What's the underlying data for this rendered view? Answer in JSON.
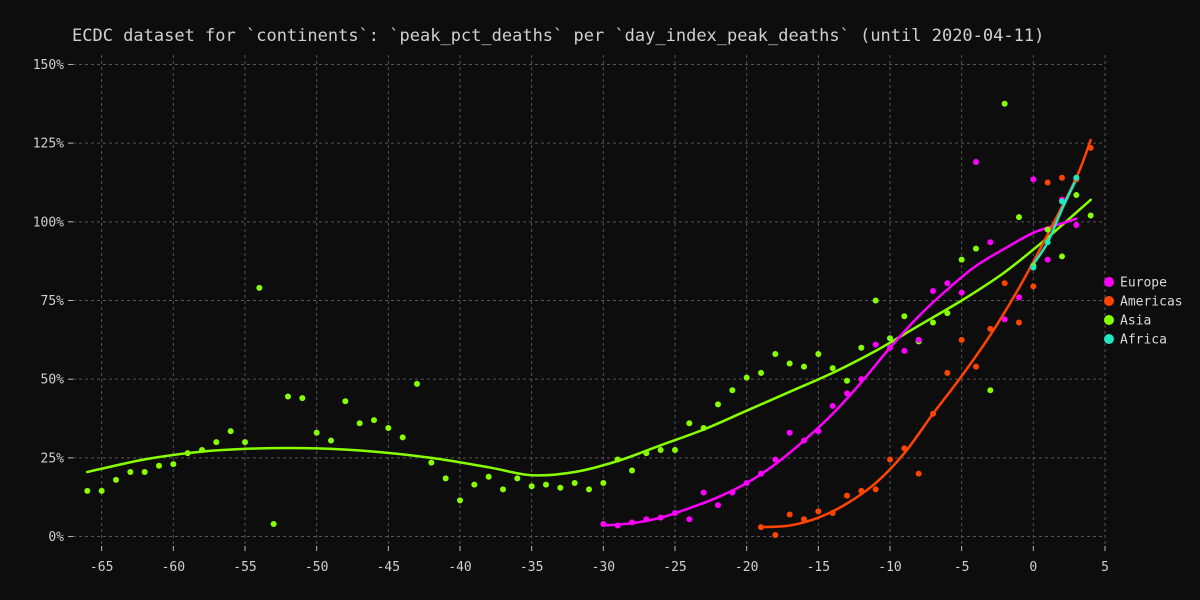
{
  "chart_data": {
    "type": "scatter",
    "title": "ECDC dataset for `continents`: `peak_pct_deaths` per `day_index_peak_deaths` (until 2020-04-11)",
    "xlabel": "",
    "ylabel": "",
    "xlim": [
      -67,
      5
    ],
    "ylim": [
      -3,
      153
    ],
    "x_ticks": [
      -65,
      -60,
      -55,
      -50,
      -45,
      -40,
      -35,
      -30,
      -25,
      -20,
      -15,
      -10,
      -5,
      0,
      5
    ],
    "x_tick_labels": [
      "-65",
      "-60",
      "-55",
      "-50",
      "-45",
      "-40",
      "-35",
      "-30",
      "-25",
      "-20",
      "-15",
      "-10",
      "-5",
      "0",
      "5"
    ],
    "y_ticks": [
      0,
      25,
      50,
      75,
      100,
      125,
      150
    ],
    "y_tick_labels": [
      "0%",
      "25%",
      "50%",
      "75%",
      "100%",
      "125%",
      "150%"
    ],
    "grid": true,
    "legend_position": "right",
    "series": [
      {
        "name": "Europe",
        "color": "#ff00ff",
        "points": [
          [
            -30,
            4
          ],
          [
            -29,
            3.5
          ],
          [
            -28,
            4.5
          ],
          [
            -27,
            5.5
          ],
          [
            -26,
            6
          ],
          [
            -25,
            7.5
          ],
          [
            -24,
            5.5
          ],
          [
            -23,
            14
          ],
          [
            -22,
            10
          ],
          [
            -21,
            14
          ],
          [
            -20,
            17
          ],
          [
            -19,
            20
          ],
          [
            -18,
            24.5
          ],
          [
            -17,
            33
          ],
          [
            -16,
            30.5
          ],
          [
            -15,
            33.5
          ],
          [
            -14,
            41.5
          ],
          [
            -13,
            45.5
          ],
          [
            -12,
            50
          ],
          [
            -11,
            61
          ],
          [
            -10,
            60
          ],
          [
            -9,
            59
          ],
          [
            -8,
            62.5
          ],
          [
            -7,
            78
          ],
          [
            -6,
            80.5
          ],
          [
            -5,
            77.5
          ],
          [
            -4,
            119
          ],
          [
            -3,
            93.5
          ],
          [
            -2,
            69
          ],
          [
            -1,
            76
          ],
          [
            0,
            113.5
          ],
          [
            1,
            88
          ],
          [
            2,
            107
          ],
          [
            3,
            99
          ]
        ],
        "trend": [
          [
            -30,
            3.5
          ],
          [
            -28,
            4.2
          ],
          [
            -26,
            6
          ],
          [
            -24,
            9
          ],
          [
            -22,
            12.5
          ],
          [
            -20,
            17
          ],
          [
            -18,
            23
          ],
          [
            -16,
            30.5
          ],
          [
            -14,
            39
          ],
          [
            -12,
            49
          ],
          [
            -10,
            60
          ],
          [
            -8,
            70
          ],
          [
            -6,
            78.5
          ],
          [
            -4,
            86
          ],
          [
            -2,
            91.5
          ],
          [
            0,
            96.5
          ],
          [
            2,
            99.5
          ],
          [
            3,
            101
          ]
        ]
      },
      {
        "name": "Americas",
        "color": "#ff4400",
        "points": [
          [
            -19,
            3
          ],
          [
            -18,
            0.5
          ],
          [
            -17,
            7
          ],
          [
            -16,
            5.5
          ],
          [
            -15,
            8
          ],
          [
            -14,
            7.5
          ],
          [
            -13,
            13
          ],
          [
            -12,
            14.5
          ],
          [
            -11,
            15
          ],
          [
            -10,
            24.5
          ],
          [
            -9,
            28
          ],
          [
            -8,
            20
          ],
          [
            -7,
            39
          ],
          [
            -6,
            52
          ],
          [
            -5,
            62.5
          ],
          [
            -4,
            54
          ],
          [
            -3,
            66
          ],
          [
            -2,
            80.5
          ],
          [
            -1,
            68
          ],
          [
            0,
            79.5
          ],
          [
            1,
            112.5
          ],
          [
            2,
            114
          ],
          [
            3,
            113.5
          ],
          [
            4,
            123.5
          ]
        ],
        "trend": [
          [
            -19,
            3
          ],
          [
            -17,
            3.5
          ],
          [
            -15,
            6
          ],
          [
            -13,
            10.5
          ],
          [
            -11,
            17
          ],
          [
            -9,
            26.5
          ],
          [
            -7,
            39
          ],
          [
            -5,
            51
          ],
          [
            -3,
            64
          ],
          [
            -1,
            79
          ],
          [
            1,
            96
          ],
          [
            3,
            114
          ],
          [
            4,
            126
          ]
        ]
      },
      {
        "name": "Asia",
        "color": "#88ff00",
        "points": [
          [
            -66,
            14.5
          ],
          [
            -65,
            14.5
          ],
          [
            -64,
            18
          ],
          [
            -63,
            20.5
          ],
          [
            -62,
            20.5
          ],
          [
            -61,
            22.5
          ],
          [
            -60,
            23
          ],
          [
            -59,
            26.5
          ],
          [
            -58,
            27.5
          ],
          [
            -57,
            30
          ],
          [
            -56,
            33.5
          ],
          [
            -55,
            30
          ],
          [
            -54,
            79
          ],
          [
            -53,
            4
          ],
          [
            -52,
            44.5
          ],
          [
            -51,
            44
          ],
          [
            -50,
            33
          ],
          [
            -49,
            30.5
          ],
          [
            -48,
            43
          ],
          [
            -47,
            36
          ],
          [
            -46,
            37
          ],
          [
            -45,
            34.5
          ],
          [
            -44,
            31.5
          ],
          [
            -43,
            48.5
          ],
          [
            -42,
            23.5
          ],
          [
            -41,
            18.5
          ],
          [
            -40,
            11.5
          ],
          [
            -39,
            16.5
          ],
          [
            -38,
            19
          ],
          [
            -37,
            15
          ],
          [
            -36,
            18.5
          ],
          [
            -35,
            16
          ],
          [
            -34,
            16.5
          ],
          [
            -33,
            15.5
          ],
          [
            -32,
            17
          ],
          [
            -31,
            15
          ],
          [
            -30,
            17
          ],
          [
            -29,
            24.5
          ],
          [
            -28,
            21
          ],
          [
            -27,
            26.5
          ],
          [
            -26,
            27.5
          ],
          [
            -25,
            27.5
          ],
          [
            -24,
            36
          ],
          [
            -23,
            34.5
          ],
          [
            -22,
            42
          ],
          [
            -21,
            46.5
          ],
          [
            -20,
            50.5
          ],
          [
            -19,
            52
          ],
          [
            -18,
            58
          ],
          [
            -17,
            55
          ],
          [
            -16,
            54
          ],
          [
            -15,
            58
          ],
          [
            -14,
            53.5
          ],
          [
            -13,
            49.5
          ],
          [
            -12,
            60
          ],
          [
            -11,
            75
          ],
          [
            -10,
            63
          ],
          [
            -9,
            70
          ],
          [
            -8,
            62
          ],
          [
            -7,
            68
          ],
          [
            -6,
            71
          ],
          [
            -5,
            88
          ],
          [
            -4,
            91.5
          ],
          [
            -3,
            46.5
          ],
          [
            -2,
            137.5
          ],
          [
            -1,
            101.5
          ],
          [
            0,
            86
          ],
          [
            1,
            97.5
          ],
          [
            2,
            89
          ],
          [
            3,
            108.5
          ],
          [
            4,
            102
          ]
        ],
        "trend": [
          [
            -66,
            20.5
          ],
          [
            -62,
            24.5
          ],
          [
            -58,
            27
          ],
          [
            -54,
            28
          ],
          [
            -50,
            28
          ],
          [
            -46,
            27
          ],
          [
            -42,
            25
          ],
          [
            -38,
            22
          ],
          [
            -35,
            19.5
          ],
          [
            -32,
            20.5
          ],
          [
            -29,
            24
          ],
          [
            -26,
            29
          ],
          [
            -23,
            34
          ],
          [
            -20,
            40
          ],
          [
            -17,
            46
          ],
          [
            -14,
            52
          ],
          [
            -11,
            59
          ],
          [
            -8,
            67
          ],
          [
            -5,
            75
          ],
          [
            -2,
            84
          ],
          [
            1,
            95
          ],
          [
            4,
            107
          ]
        ]
      },
      {
        "name": "Africa",
        "color": "#1ee8c0",
        "points": [
          [
            0,
            85.5
          ],
          [
            1,
            93.5
          ],
          [
            2,
            106.5
          ],
          [
            3,
            114
          ]
        ],
        "trend": [
          [
            0,
            86.5
          ],
          [
            1,
            93.5
          ],
          [
            2,
            104
          ],
          [
            3,
            113.5
          ]
        ]
      }
    ]
  }
}
